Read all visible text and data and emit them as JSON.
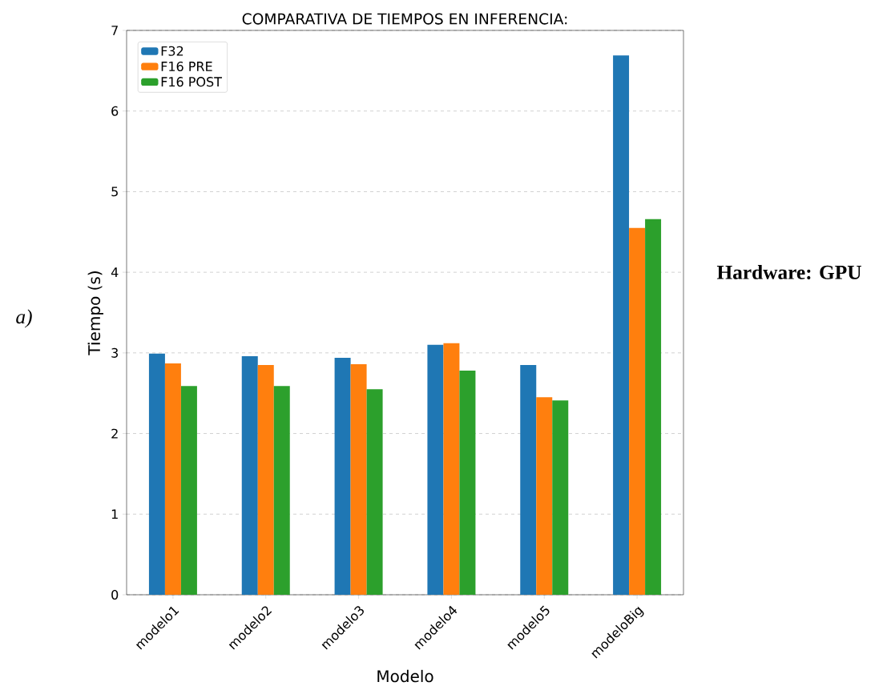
{
  "chart_data": {
    "type": "bar",
    "title": "COMPARATIVA DE TIEMPOS EN INFERENCIA:",
    "xlabel": "Modelo",
    "ylabel": "Tiempo (s)",
    "categories": [
      "modelo1",
      "modelo2",
      "modelo3",
      "modelo4",
      "modelo5",
      "modeloBig"
    ],
    "series": [
      {
        "name": "F32",
        "color": "#1f77b4",
        "values": [
          2.99,
          2.96,
          2.94,
          3.1,
          2.85,
          6.69
        ]
      },
      {
        "name": "F16 PRE",
        "color": "#ff7f0e",
        "values": [
          2.87,
          2.85,
          2.86,
          3.12,
          2.45,
          4.55
        ]
      },
      {
        "name": "F16 POST",
        "color": "#2ca02c",
        "values": [
          2.59,
          2.59,
          2.55,
          2.78,
          2.41,
          4.66
        ]
      }
    ],
    "ylim": [
      0,
      7
    ],
    "yticks": [
      0,
      1,
      2,
      3,
      4,
      5,
      6,
      7
    ],
    "grid": "y",
    "legend": "top left",
    "annotations": [
      "a)",
      "Hardware: GPU"
    ]
  }
}
